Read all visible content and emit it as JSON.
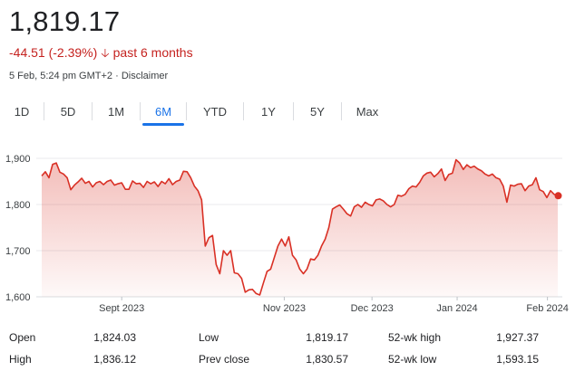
{
  "quote": {
    "price": "1,819.17",
    "change": "-44.51 (-2.39%)",
    "change_arrow_icon": "arrow-down-icon",
    "period": "past 6 months",
    "timestamp": "5 Feb, 5:24 pm GMT+2",
    "separator": "·",
    "disclaimer": "Disclaimer",
    "negative_color": "#c5221f"
  },
  "tabs": [
    {
      "label": "1D",
      "active": false
    },
    {
      "label": "5D",
      "active": false
    },
    {
      "label": "1M",
      "active": false
    },
    {
      "label": "6M",
      "active": true
    },
    {
      "label": "YTD",
      "active": false
    },
    {
      "label": "1Y",
      "active": false
    },
    {
      "label": "5Y",
      "active": false
    },
    {
      "label": "Max",
      "active": false
    }
  ],
  "accent_color": "#1a73e8",
  "chart_data": {
    "type": "area",
    "series": [
      {
        "color": "#d93025",
        "values": [
          1862,
          1871,
          1858,
          1887,
          1890,
          1870,
          1866,
          1858,
          1832,
          1842,
          1849,
          1857,
          1846,
          1850,
          1838,
          1847,
          1850,
          1843,
          1850,
          1853,
          1842,
          1845,
          1847,
          1833,
          1833,
          1851,
          1845,
          1846,
          1837,
          1850,
          1845,
          1849,
          1839,
          1850,
          1845,
          1856,
          1843,
          1850,
          1853,
          1872,
          1871,
          1858,
          1840,
          1830,
          1810,
          1710,
          1728,
          1733,
          1670,
          1650,
          1700,
          1690,
          1700,
          1652,
          1650,
          1640,
          1610,
          1615,
          1616,
          1607,
          1604,
          1630,
          1655,
          1660,
          1685,
          1710,
          1725,
          1710,
          1730,
          1690,
          1680,
          1660,
          1650,
          1660,
          1682,
          1680,
          1690,
          1710,
          1725,
          1750,
          1790,
          1795,
          1799,
          1790,
          1780,
          1775,
          1795,
          1800,
          1794,
          1805,
          1800,
          1797,
          1810,
          1812,
          1808,
          1800,
          1795,
          1800,
          1820,
          1818,
          1822,
          1834,
          1840,
          1838,
          1848,
          1862,
          1868,
          1870,
          1860,
          1867,
          1877,
          1852,
          1865,
          1868,
          1897,
          1890,
          1876,
          1886,
          1880,
          1883,
          1877,
          1873,
          1866,
          1862,
          1866,
          1858,
          1855,
          1840,
          1805,
          1842,
          1840,
          1844,
          1845,
          1830,
          1840,
          1843,
          1858,
          1832,
          1828,
          1815,
          1830,
          1822,
          1819
        ]
      }
    ],
    "x_ticks": [
      "Sept 2023",
      "Nov 2023",
      "Dec 2023",
      "Jan 2024",
      "Feb 2024"
    ],
    "y_ticks": [
      "1,600",
      "1,700",
      "1,800",
      "1,900"
    ],
    "ylim": [
      1600,
      1900
    ],
    "grid": true
  },
  "stats": [
    {
      "label": "Open",
      "value": "1,824.03"
    },
    {
      "label": "High",
      "value": "1,836.12"
    },
    {
      "label": "Low",
      "value": "1,819.17"
    },
    {
      "label": "Prev close",
      "value": "1,830.57"
    },
    {
      "label": "52-wk high",
      "value": "1,927.37"
    },
    {
      "label": "52-wk low",
      "value": "1,593.15"
    }
  ]
}
